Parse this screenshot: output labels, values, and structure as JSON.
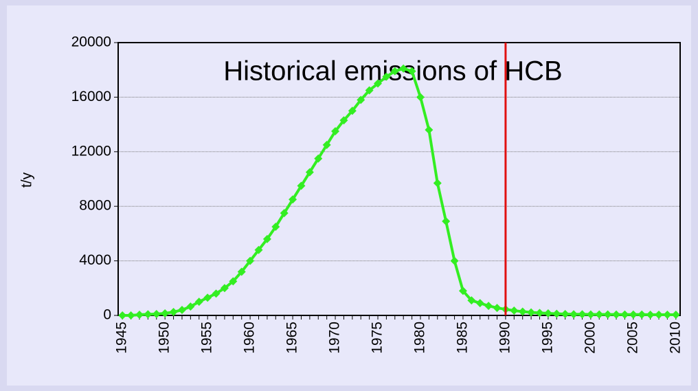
{
  "chart_data": {
    "type": "line",
    "title": "Historical emissions of HCB",
    "y_label": "t/y",
    "x": [
      1945,
      1946,
      1947,
      1948,
      1949,
      1950,
      1951,
      1952,
      1953,
      1954,
      1955,
      1956,
      1957,
      1958,
      1959,
      1960,
      1961,
      1962,
      1963,
      1964,
      1965,
      1966,
      1967,
      1968,
      1969,
      1970,
      1971,
      1972,
      1973,
      1974,
      1975,
      1976,
      1977,
      1978,
      1979,
      1980,
      1981,
      1982,
      1983,
      1984,
      1985,
      1986,
      1987,
      1988,
      1989,
      1990,
      1991,
      1992,
      1993,
      1994,
      1995,
      1996,
      1997,
      1998,
      1999,
      2000,
      2001,
      2002,
      2003,
      2004,
      2005,
      2006,
      2007,
      2008,
      2009,
      2010
    ],
    "series": [
      {
        "color": "#33ee22",
        "values": [
          0,
          0,
          50,
          80,
          100,
          150,
          250,
          400,
          650,
          1000,
          1300,
          1600,
          2000,
          2500,
          3200,
          4000,
          4800,
          5600,
          6500,
          7500,
          8500,
          9500,
          10500,
          11500,
          12500,
          13500,
          14300,
          15000,
          15800,
          16500,
          17000,
          17500,
          17900,
          18100,
          17900,
          16000,
          13600,
          9700,
          6900,
          4000,
          1800,
          1100,
          900,
          700,
          550,
          450,
          350,
          280,
          220,
          180,
          150,
          120,
          100,
          80,
          80,
          70,
          70,
          70,
          60,
          60,
          60,
          60,
          50,
          50,
          50,
          50
        ]
      }
    ],
    "xlim": [
      1944.5,
      2010.5
    ],
    "xticks": [
      1945,
      1950,
      1955,
      1960,
      1965,
      1970,
      1975,
      1980,
      1985,
      1990,
      1995,
      2000,
      2005,
      2010
    ],
    "ylim": [
      0,
      20000
    ],
    "yticks": [
      0,
      4000,
      8000,
      12000,
      16000,
      20000
    ],
    "grid": true,
    "vline": {
      "x": 1990,
      "color": "#e01010"
    }
  }
}
